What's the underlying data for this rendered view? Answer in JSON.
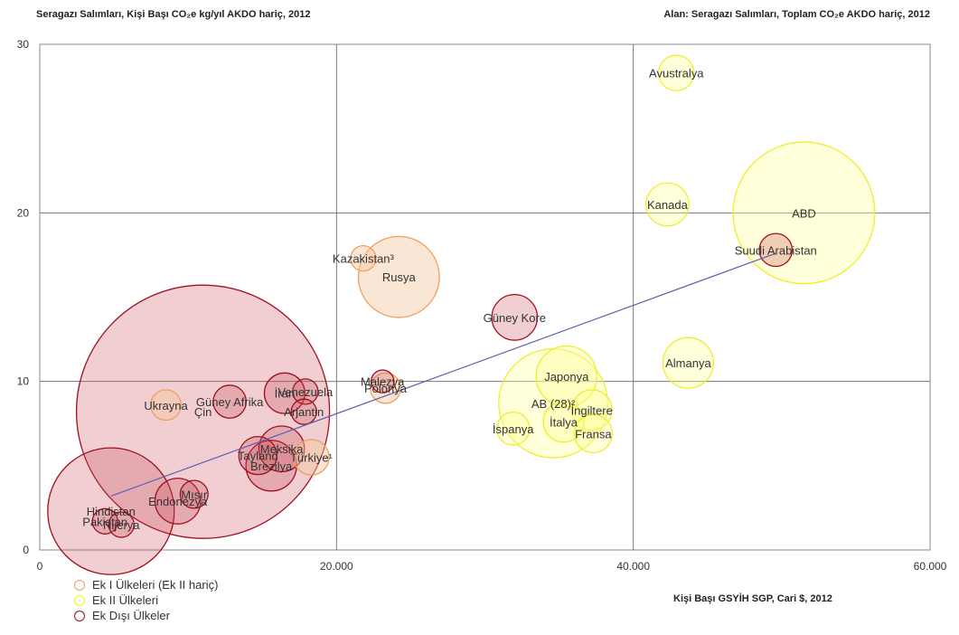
{
  "header": {
    "left_title": "Seragazı Salımları, Kişi Başı CO₂e kg/yıl AKDO hariç, 2012",
    "right_title": "Alan: Seragazı Salımları, Toplam CO₂e AKDO hariç, 2012"
  },
  "legend": [
    {
      "label": "Ek I Ülkeleri (Ek II hariç)",
      "color": "#f0a060"
    },
    {
      "label": "Ek II Ülkeleri",
      "color": "#f0f020"
    },
    {
      "label": "Ek Dışı Ülkeler",
      "color": "#a01020"
    }
  ],
  "chart_data": {
    "type": "bubble",
    "title": "",
    "xlabel": "Kişi Başı GSYİH SGP, Cari $, 2012",
    "ylabel": "",
    "xlim": [
      0,
      60000
    ],
    "ylim": [
      0,
      30
    ],
    "xticks": [
      "0",
      "20.000",
      "40.000",
      "60.000"
    ],
    "yticks": [
      "0",
      "10",
      "20",
      "30"
    ],
    "grid": true,
    "series": [
      {
        "name": "Ek I Ülkeleri (Ek II hariç)",
        "color": "#f0a060",
        "fill": "rgba(245,200,160,0.45)",
        "points": [
          {
            "label": "Kazakistan³",
            "x": 21800,
            "y": 17.3,
            "size": 1.0
          },
          {
            "label": "Rusya",
            "x": 24200,
            "y": 16.2,
            "size": 3.2
          },
          {
            "label": "Ukrayna",
            "x": 8500,
            "y": 8.6,
            "size": 1.2
          },
          {
            "label": "Polonya",
            "x": 23300,
            "y": 9.6,
            "size": 1.2
          },
          {
            "label": "Türkiye¹",
            "x": 18300,
            "y": 5.5,
            "size": 1.4
          }
        ]
      },
      {
        "name": "Ek II Ülkeleri",
        "color": "#eeee30",
        "fill": "rgba(255,255,150,0.35)",
        "points": [
          {
            "label": "Avustralya",
            "x": 42900,
            "y": 28.3,
            "size": 1.4
          },
          {
            "label": "Kanada",
            "x": 42300,
            "y": 20.5,
            "size": 1.7
          },
          {
            "label": "ABD",
            "x": 51500,
            "y": 20.0,
            "size": 5.6
          },
          {
            "label": "Almanya",
            "x": 43700,
            "y": 11.1,
            "size": 2.0
          },
          {
            "label": "Japonya",
            "x": 35500,
            "y": 10.3,
            "size": 2.4
          },
          {
            "label": "AB (28)²",
            "x": 34600,
            "y": 8.7,
            "size": 4.3
          },
          {
            "label": "İngiltere",
            "x": 37200,
            "y": 8.3,
            "size": 1.6
          },
          {
            "label": "İtalya",
            "x": 35300,
            "y": 7.6,
            "size": 1.6
          },
          {
            "label": "İspanya",
            "x": 31900,
            "y": 7.2,
            "size": 1.3
          },
          {
            "label": "Fransa",
            "x": 37300,
            "y": 6.9,
            "size": 1.5
          }
        ]
      },
      {
        "name": "Ek Dışı Ülkeler",
        "color": "#a01020",
        "fill": "rgba(200,80,90,0.28)",
        "points": [
          {
            "label": "Suudi Arabistan",
            "x": 49600,
            "y": 17.8,
            "size": 1.3
          },
          {
            "label": "Güney Kore",
            "x": 32000,
            "y": 13.8,
            "size": 1.8
          },
          {
            "label": "Malezya",
            "x": 23100,
            "y": 10.0,
            "size": 0.9
          },
          {
            "label": "Venezuela",
            "x": 17900,
            "y": 9.4,
            "size": 1.0
          },
          {
            "label": "İran",
            "x": 16500,
            "y": 9.3,
            "size": 1.6
          },
          {
            "label": "Arjantin",
            "x": 17800,
            "y": 8.2,
            "size": 1.0
          },
          {
            "label": "Güney Afrika",
            "x": 12800,
            "y": 8.8,
            "size": 1.3
          },
          {
            "label": "Çin",
            "x": 11000,
            "y": 8.2,
            "size": 10.0
          },
          {
            "label": "Meksika",
            "x": 16300,
            "y": 6.0,
            "size": 1.8
          },
          {
            "label": "Tayland",
            "x": 14700,
            "y": 5.6,
            "size": 1.5
          },
          {
            "label": "Brezilya",
            "x": 15600,
            "y": 5.0,
            "size": 2.0
          },
          {
            "label": "Mısır",
            "x": 10400,
            "y": 3.3,
            "size": 1.1
          },
          {
            "label": "Endonezya",
            "x": 9300,
            "y": 2.9,
            "size": 1.8
          },
          {
            "label": "Hindistan",
            "x": 4800,
            "y": 2.3,
            "size": 5.0
          },
          {
            "label": "Pakistan",
            "x": 4400,
            "y": 1.7,
            "size": 1.0
          },
          {
            "label": "Nijerya",
            "x": 5500,
            "y": 1.5,
            "size": 1.0
          }
        ]
      }
    ],
    "trendline": {
      "from": {
        "x": 4800,
        "y": 3.2
      },
      "to": {
        "x": 49600,
        "y": 17.6
      },
      "color": "#6060b0"
    }
  }
}
